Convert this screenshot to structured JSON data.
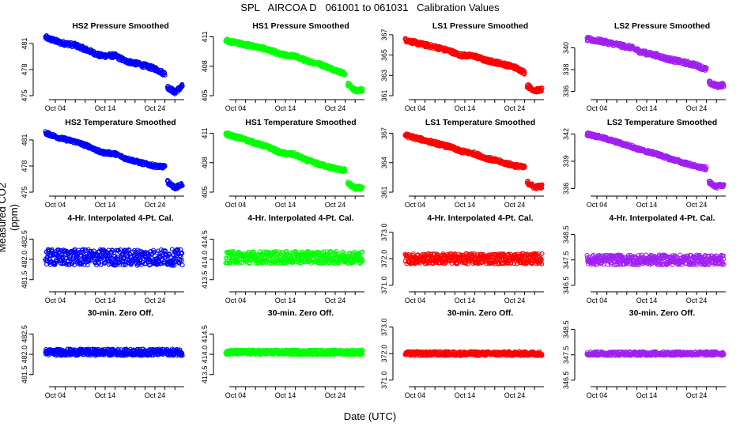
{
  "title": "SPL   AIRCOA D   061001 to 061031   Calibration Values",
  "ylabel": "Measured CO2 (ppm)",
  "xlabel": "Date (UTC)",
  "colors": {
    "HS2": "#0000ff",
    "HS1": "#00ff00",
    "LS1": "#ff0000",
    "LS2": "#a020f0"
  },
  "chart_data": [
    {
      "type": "scatter",
      "title": "HS2 Pressure Smoothed",
      "series": "HS2",
      "yticks": [
        "475",
        "478",
        "481"
      ],
      "ylim": [
        475,
        482
      ],
      "xticks": [
        "Oct 04",
        "Oct 14",
        "Oct 24"
      ],
      "xtick_days": [
        4,
        14,
        24
      ],
      "xlim": [
        1,
        31
      ],
      "trend": [
        [
          2,
          481.7
        ],
        [
          5,
          481.1
        ],
        [
          8,
          480.8
        ],
        [
          11,
          480.1
        ],
        [
          13,
          479.6
        ],
        [
          16,
          479.6
        ],
        [
          18,
          479.0
        ],
        [
          21,
          478.6
        ],
        [
          24,
          478.1
        ],
        [
          26,
          477.5
        ]
      ],
      "trend2": [
        [
          26.5,
          476.0
        ],
        [
          28,
          475.4
        ],
        [
          29.5,
          476.1
        ]
      ],
      "noise": 0.25
    },
    {
      "type": "scatter",
      "title": "HS1 Pressure Smoothed",
      "series": "HS1",
      "yticks": [
        "405",
        "408",
        "411"
      ],
      "ylim": [
        405,
        411.2
      ],
      "xticks": [
        "Oct 04",
        "Oct 14",
        "Oct 24"
      ],
      "xtick_days": [
        4,
        14,
        24
      ],
      "xlim": [
        1,
        31
      ],
      "trend": [
        [
          2,
          410.6
        ],
        [
          5,
          410.3
        ],
        [
          8,
          410.0
        ],
        [
          11,
          409.6
        ],
        [
          13,
          409.2
        ],
        [
          16,
          409.0
        ],
        [
          18,
          408.6
        ],
        [
          21,
          408.2
        ],
        [
          24,
          407.6
        ],
        [
          26,
          407.2
        ]
      ],
      "trend2": [
        [
          26.5,
          406.2
        ],
        [
          28,
          405.5
        ],
        [
          29.5,
          405.6
        ]
      ],
      "noise": 0.2
    },
    {
      "type": "scatter",
      "title": "LS1 Pressure Smoothed",
      "series": "LS1",
      "yticks": [
        "361",
        "363",
        "365",
        "367"
      ],
      "ylim": [
        361,
        367
      ],
      "xticks": [
        "Oct 04",
        "Oct 14",
        "Oct 24"
      ],
      "xtick_days": [
        4,
        14,
        24
      ],
      "xlim": [
        1,
        31
      ],
      "trend": [
        [
          2,
          366.5
        ],
        [
          5,
          366.1
        ],
        [
          8,
          365.8
        ],
        [
          11,
          365.4
        ],
        [
          13,
          365.0
        ],
        [
          16,
          364.9
        ],
        [
          18,
          364.5
        ],
        [
          21,
          364.2
        ],
        [
          24,
          363.8
        ],
        [
          26,
          363.3
        ]
      ],
      "trend2": [
        [
          26.5,
          362.0
        ],
        [
          28,
          361.5
        ],
        [
          29.5,
          361.6
        ]
      ],
      "noise": 0.2
    },
    {
      "type": "scatter",
      "title": "LS2 Pressure Smoothed",
      "series": "LS2",
      "yticks": [
        "336",
        "338",
        "340"
      ],
      "ylim": [
        335.6,
        341.2
      ],
      "xticks": [
        "Oct 04",
        "Oct 14",
        "Oct 24"
      ],
      "xtick_days": [
        4,
        14,
        24
      ],
      "xlim": [
        1,
        31
      ],
      "trend": [
        [
          2,
          340.8
        ],
        [
          5,
          340.6
        ],
        [
          8,
          340.3
        ],
        [
          11,
          340.0
        ],
        [
          13,
          339.6
        ],
        [
          16,
          339.3
        ],
        [
          18,
          339.0
        ],
        [
          21,
          338.7
        ],
        [
          24,
          338.4
        ],
        [
          26,
          338.0
        ]
      ],
      "trend2": [
        [
          26.5,
          336.8
        ],
        [
          28,
          336.5
        ],
        [
          29.5,
          336.6
        ]
      ],
      "noise": 0.2
    },
    {
      "type": "scatter",
      "title": "HS2 Temperature Smoothed",
      "series": "HS2",
      "yticks": [
        "475",
        "478",
        "481"
      ],
      "ylim": [
        475,
        482
      ],
      "xticks": [
        "Oct 04",
        "Oct 14",
        "Oct 24"
      ],
      "xtick_days": [
        4,
        14,
        24
      ],
      "xlim": [
        1,
        31
      ],
      "trend": [
        [
          2,
          481.8
        ],
        [
          5,
          481.2
        ],
        [
          8,
          480.8
        ],
        [
          11,
          480.2
        ],
        [
          13,
          479.6
        ],
        [
          16,
          479.4
        ],
        [
          18,
          478.9
        ],
        [
          21,
          478.4
        ],
        [
          24,
          478.0
        ],
        [
          26,
          477.9
        ]
      ],
      "trend2": [
        [
          26.5,
          476.2
        ],
        [
          28,
          475.5
        ],
        [
          29.5,
          475.9
        ]
      ],
      "noise": 0.2
    },
    {
      "type": "scatter",
      "title": "HS1 Temperature Smoothed",
      "series": "HS1",
      "yticks": [
        "405",
        "408",
        "411"
      ],
      "ylim": [
        405,
        411.2
      ],
      "xticks": [
        "Oct 04",
        "Oct 14",
        "Oct 24"
      ],
      "xtick_days": [
        4,
        14,
        24
      ],
      "xlim": [
        1,
        31
      ],
      "trend": [
        [
          2,
          410.9
        ],
        [
          5,
          410.5
        ],
        [
          8,
          410.0
        ],
        [
          11,
          409.5
        ],
        [
          13,
          409.0
        ],
        [
          16,
          408.8
        ],
        [
          18,
          408.3
        ],
        [
          21,
          407.8
        ],
        [
          24,
          407.4
        ],
        [
          26,
          407.2
        ]
      ],
      "trend2": [
        [
          26.5,
          405.9
        ],
        [
          28,
          405.4
        ],
        [
          29.5,
          405.5
        ]
      ],
      "noise": 0.2
    },
    {
      "type": "scatter",
      "title": "LS1 Temperature Smoothed",
      "series": "LS1",
      "yticks": [
        "361",
        "364",
        "367"
      ],
      "ylim": [
        361,
        367.2
      ],
      "xticks": [
        "Oct 04",
        "Oct 14",
        "Oct 24"
      ],
      "xtick_days": [
        4,
        14,
        24
      ],
      "xlim": [
        1,
        31
      ],
      "trend": [
        [
          2,
          366.8
        ],
        [
          5,
          366.4
        ],
        [
          8,
          366.0
        ],
        [
          11,
          365.6
        ],
        [
          13,
          365.2
        ],
        [
          16,
          364.9
        ],
        [
          18,
          364.5
        ],
        [
          21,
          364.1
        ],
        [
          24,
          363.7
        ],
        [
          26,
          363.5
        ]
      ],
      "trend2": [
        [
          26.5,
          362.0
        ],
        [
          28,
          361.5
        ],
        [
          29.5,
          361.6
        ]
      ],
      "noise": 0.2
    },
    {
      "type": "scatter",
      "title": "LS2 Temperature Smoothed",
      "series": "LS2",
      "yticks": [
        "336",
        "339",
        "342"
      ],
      "ylim": [
        335.6,
        342.3
      ],
      "xticks": [
        "Oct 04",
        "Oct 14",
        "Oct 24"
      ],
      "xtick_days": [
        4,
        14,
        24
      ],
      "xlim": [
        1,
        31
      ],
      "trend": [
        [
          2,
          342.0
        ],
        [
          5,
          341.6
        ],
        [
          8,
          341.1
        ],
        [
          11,
          340.6
        ],
        [
          13,
          340.2
        ],
        [
          16,
          339.8
        ],
        [
          18,
          339.4
        ],
        [
          21,
          338.9
        ],
        [
          24,
          338.4
        ],
        [
          26,
          338.2
        ]
      ],
      "trend2": [
        [
          26.5,
          336.7
        ],
        [
          28,
          336.2
        ],
        [
          29.5,
          336.4
        ]
      ],
      "noise": 0.2
    },
    {
      "type": "scatter",
      "title": "4-Hr. Interpolated 4-Pt. Cal.",
      "series": "HS2",
      "yticks": [
        "481.5",
        "482.0",
        "482.5"
      ],
      "ylim": [
        481.3,
        482.8
      ],
      "xticks": [
        "Oct 04",
        "Oct 14",
        "Oct 24"
      ],
      "xtick_days": [
        4,
        14,
        24
      ],
      "xlim": [
        1,
        31
      ],
      "trend": [
        [
          2,
          482.05
        ],
        [
          29.5,
          482.05
        ]
      ],
      "noise": 0.2
    },
    {
      "type": "scatter",
      "title": "4-Hr. Interpolated 4-Pt. Cal.",
      "series": "HS1",
      "yticks": [
        "413.5",
        "414.0",
        "414.5"
      ],
      "ylim": [
        413.3,
        414.8
      ],
      "xticks": [
        "Oct 04",
        "Oct 14",
        "Oct 24"
      ],
      "xtick_days": [
        4,
        14,
        24
      ],
      "xlim": [
        1,
        31
      ],
      "trend": [
        [
          2,
          414.05
        ],
        [
          29.5,
          414.05
        ]
      ],
      "noise": 0.15
    },
    {
      "type": "scatter",
      "title": "4-Hr. Interpolated 4-Pt. Cal.",
      "series": "LS1",
      "yticks": [
        "371.0",
        "372.0",
        "373.0"
      ],
      "ylim": [
        370.9,
        373.2
      ],
      "xticks": [
        "Oct 04",
        "Oct 14",
        "Oct 24"
      ],
      "xtick_days": [
        4,
        14,
        24
      ],
      "xlim": [
        1,
        31
      ],
      "trend": [
        [
          2,
          372.0
        ],
        [
          29.5,
          372.0
        ]
      ],
      "noise": 0.2
    },
    {
      "type": "scatter",
      "title": "4-Hr. Interpolated 4-Pt. Cal.",
      "series": "LS2",
      "yticks": [
        "346.5",
        "347.5",
        "348.5"
      ],
      "ylim": [
        346.4,
        348.8
      ],
      "xticks": [
        "Oct 04",
        "Oct 14",
        "Oct 24"
      ],
      "xtick_days": [
        4,
        14,
        24
      ],
      "xlim": [
        1,
        31
      ],
      "trend": [
        [
          2,
          347.5
        ],
        [
          29.5,
          347.5
        ]
      ],
      "noise": 0.2
    },
    {
      "type": "scatter",
      "title": "30-min. Zero Off.",
      "series": "HS2",
      "yticks": [
        "481.5",
        "482.0",
        "482.5"
      ],
      "ylim": [
        481.3,
        482.8
      ],
      "xticks": [
        "Oct 04",
        "Oct 14",
        "Oct 24"
      ],
      "xtick_days": [
        4,
        14,
        24
      ],
      "xlim": [
        1,
        31
      ],
      "trend": [
        [
          2,
          482.05
        ],
        [
          29.5,
          482.05
        ]
      ],
      "noise": 0.08
    },
    {
      "type": "scatter",
      "title": "30-min. Zero Off.",
      "series": "HS1",
      "yticks": [
        "413.5",
        "414.0",
        "414.5"
      ],
      "ylim": [
        413.3,
        414.8
      ],
      "xticks": [
        "Oct 04",
        "Oct 14",
        "Oct 24"
      ],
      "xtick_days": [
        4,
        14,
        24
      ],
      "xlim": [
        1,
        31
      ],
      "trend": [
        [
          2,
          414.05
        ],
        [
          29.5,
          414.05
        ]
      ],
      "noise": 0.06
    },
    {
      "type": "scatter",
      "title": "30-min. Zero Off.",
      "series": "LS1",
      "yticks": [
        "371.0",
        "372.0",
        "373.0"
      ],
      "ylim": [
        370.9,
        373.2
      ],
      "xticks": [
        "Oct 04",
        "Oct 14",
        "Oct 24"
      ],
      "xtick_days": [
        4,
        14,
        24
      ],
      "xlim": [
        1,
        31
      ],
      "trend": [
        [
          2,
          372.0
        ],
        [
          29.5,
          372.0
        ]
      ],
      "noise": 0.08
    },
    {
      "type": "scatter",
      "title": "30-min. Zero Off.",
      "series": "LS2",
      "yticks": [
        "346.5",
        "347.5",
        "348.5"
      ],
      "ylim": [
        346.4,
        348.8
      ],
      "xticks": [
        "Oct 04",
        "Oct 14",
        "Oct 24"
      ],
      "xtick_days": [
        4,
        14,
        24
      ],
      "xlim": [
        1,
        31
      ],
      "trend": [
        [
          2,
          347.55
        ],
        [
          29.5,
          347.55
        ]
      ],
      "noise": 0.08
    }
  ]
}
